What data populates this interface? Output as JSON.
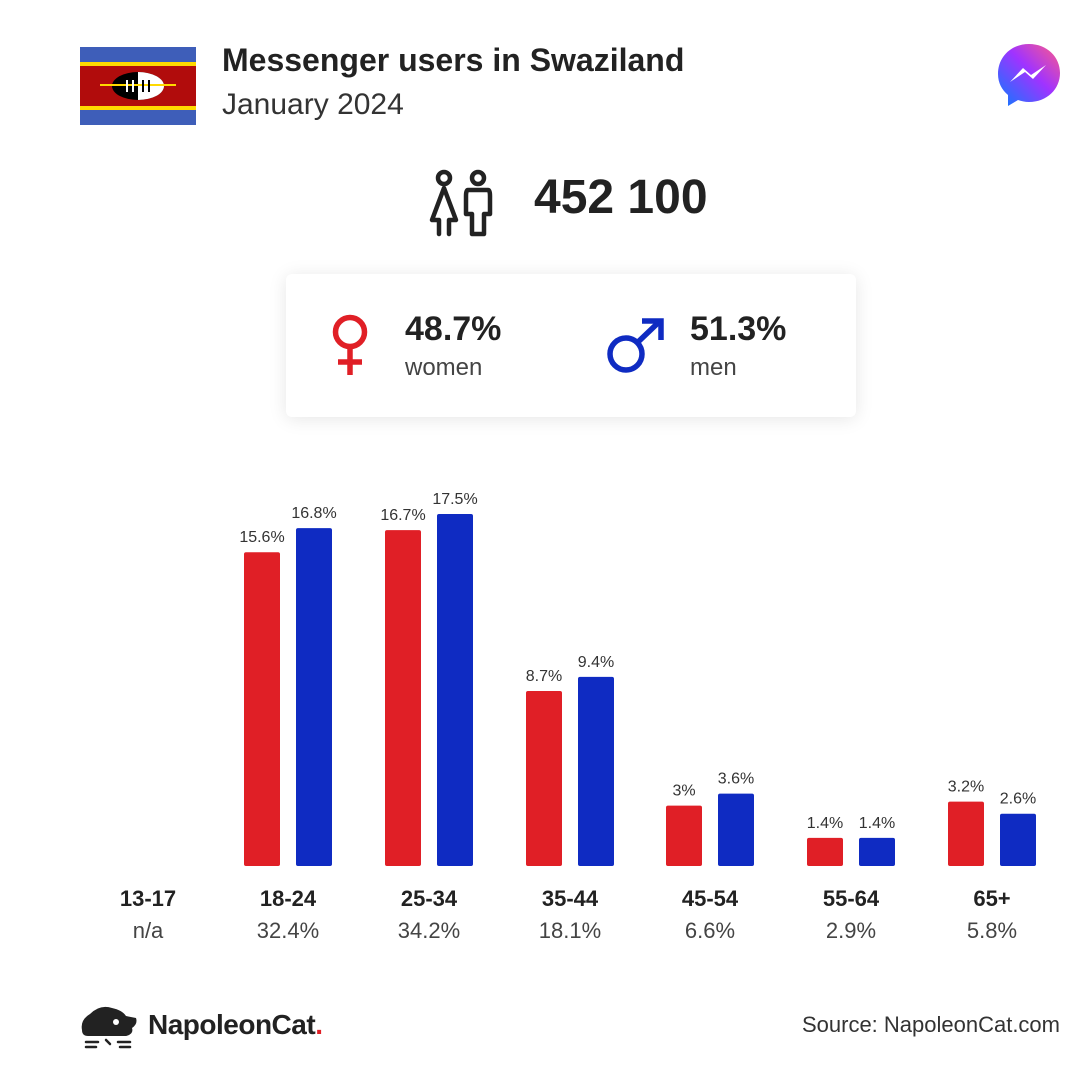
{
  "header": {
    "title": "Messenger users in Swaziland",
    "subtitle": "January 2024"
  },
  "total_users": "452 100",
  "gender": {
    "women_pct": "48.7%",
    "women_label": "women",
    "men_pct": "51.3%",
    "men_label": "men"
  },
  "colors": {
    "women": "#e01f26",
    "men": "#0f2bc2",
    "text": "#222222"
  },
  "chart_data": {
    "type": "bar",
    "categories": [
      "13-17",
      "18-24",
      "25-34",
      "35-44",
      "45-54",
      "55-64",
      "65+"
    ],
    "category_totals": [
      "n/a",
      "32.4%",
      "34.2%",
      "18.1%",
      "6.6%",
      "2.9%",
      "5.8%"
    ],
    "series": [
      {
        "values": [
          null,
          15.6,
          16.7,
          8.7,
          3,
          1.4,
          3.2
        ],
        "labels": [
          "",
          "15.6%",
          "16.7%",
          "8.7%",
          "3%",
          "1.4%",
          "3.2%"
        ],
        "color": "#e01f26"
      },
      {
        "values": [
          null,
          16.8,
          17.5,
          9.4,
          3.6,
          1.4,
          2.6
        ],
        "labels": [
          "",
          "16.8%",
          "17.5%",
          "9.4%",
          "3.6%",
          "1.4%",
          "2.6%"
        ],
        "color": "#0f2bc2"
      }
    ],
    "ylim": [
      0,
      17.5
    ],
    "grid": false
  },
  "footer": {
    "brand": "NapoleonCat",
    "brand_dot": ".",
    "source": "Source: NapoleonCat.com"
  },
  "icons": {
    "flag": "eswatini-flag-icon",
    "messenger": "messenger-logo-icon",
    "users": "users-icon",
    "female": "female-symbol-icon",
    "male": "male-symbol-icon",
    "brand": "napoleoncat-logo-icon"
  }
}
